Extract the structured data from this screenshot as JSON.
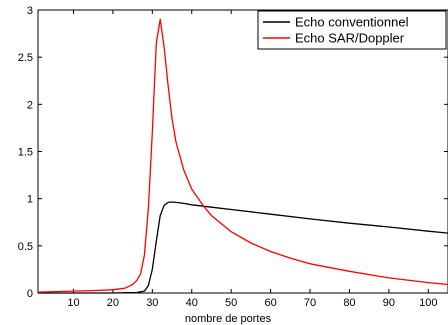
{
  "chart_data": {
    "type": "line",
    "title": "",
    "xlabel": "nombre de portes",
    "ylabel": "",
    "xlim": [
      1,
      105
    ],
    "ylim": [
      0,
      3
    ],
    "x_ticks": [
      10,
      20,
      30,
      40,
      50,
      60,
      70,
      80,
      90,
      100
    ],
    "y_ticks": [
      0,
      0.5,
      1,
      1.5,
      2,
      2.5,
      3
    ],
    "grid": false,
    "legend_position": "top-right",
    "series": [
      {
        "name": "Echo conventionnel",
        "color": "#000000",
        "x": [
          1,
          10,
          20,
          26,
          28,
          29,
          30,
          31,
          32,
          33,
          34,
          35,
          36,
          38,
          40,
          45,
          50,
          60,
          70,
          80,
          90,
          100,
          105
        ],
        "y": [
          0,
          0,
          0,
          0.005,
          0.02,
          0.08,
          0.25,
          0.55,
          0.82,
          0.93,
          0.96,
          0.965,
          0.96,
          0.95,
          0.935,
          0.91,
          0.885,
          0.835,
          0.785,
          0.74,
          0.7,
          0.655,
          0.635
        ]
      },
      {
        "name": "Echo SAR/Doppler",
        "color": "#ff0000",
        "x": [
          1,
          10,
          15,
          20,
          23,
          25,
          26,
          27,
          28,
          29,
          30,
          31,
          32,
          33,
          34,
          35,
          36,
          38,
          40,
          43,
          45,
          50,
          55,
          60,
          65,
          70,
          80,
          90,
          100,
          105
        ],
        "y": [
          0.01,
          0.02,
          0.025,
          0.035,
          0.05,
          0.09,
          0.13,
          0.2,
          0.4,
          0.9,
          1.7,
          2.65,
          2.9,
          2.6,
          2.2,
          1.85,
          1.6,
          1.3,
          1.1,
          0.92,
          0.82,
          0.65,
          0.53,
          0.44,
          0.37,
          0.31,
          0.23,
          0.16,
          0.11,
          0.09
        ]
      }
    ]
  }
}
